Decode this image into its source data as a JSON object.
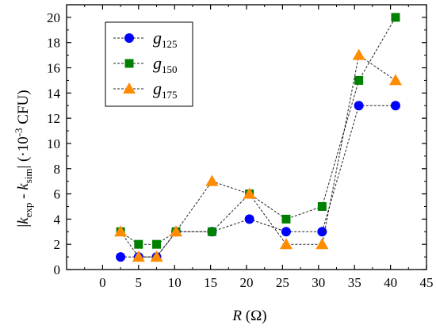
{
  "chart_data": {
    "type": "line",
    "xlabel": "R (Ω)",
    "ylabel": "|kexp - ksim| (·10⁻³ CFU)",
    "xlim": [
      -5,
      45
    ],
    "ylim": [
      0,
      21
    ],
    "xticks": [
      0,
      5,
      10,
      15,
      20,
      25,
      30,
      35,
      40,
      45
    ],
    "yticks": [
      0,
      2,
      4,
      6,
      8,
      10,
      12,
      14,
      16,
      18,
      20
    ],
    "legend_position": "top-left",
    "grid": false,
    "series": [
      {
        "name": "g125",
        "base": "g",
        "sub": "125",
        "marker": "circle",
        "color": "#0000ff",
        "x": [
          2.5,
          5,
          7.5,
          10.2,
          15.2,
          20.4,
          25.5,
          30.5,
          35.6,
          40.7
        ],
        "y": [
          1,
          1,
          1,
          3,
          3,
          4,
          3,
          3,
          13,
          13
        ]
      },
      {
        "name": "g150",
        "base": "g",
        "sub": "150",
        "marker": "square",
        "color": "#008000",
        "x": [
          2.5,
          5,
          7.5,
          10.2,
          15.2,
          20.4,
          25.5,
          30.5,
          35.6,
          40.7
        ],
        "y": [
          3,
          2,
          2,
          3,
          3,
          6,
          4,
          5,
          15,
          20
        ]
      },
      {
        "name": "g175",
        "base": "g",
        "sub": "175",
        "marker": "triangle",
        "color": "#ff8c00",
        "x": [
          2.5,
          5,
          7.5,
          10.2,
          15.2,
          20.4,
          25.5,
          30.5,
          35.6,
          40.7
        ],
        "y": [
          3,
          1,
          1,
          3,
          7,
          6,
          2,
          2,
          17,
          15
        ]
      }
    ]
  },
  "axis_text": {
    "y_abs_open": "|",
    "y_k1": "k",
    "y_sub1": "exp",
    "y_minus": " - ",
    "y_k2": "k",
    "y_sub2": "sim",
    "y_abs_close": "|",
    "y_unit_open": " (·10",
    "y_unit_exp": "-3",
    "y_unit_close": " CFU)",
    "x_var": "R",
    "x_unit": " (Ω)"
  }
}
